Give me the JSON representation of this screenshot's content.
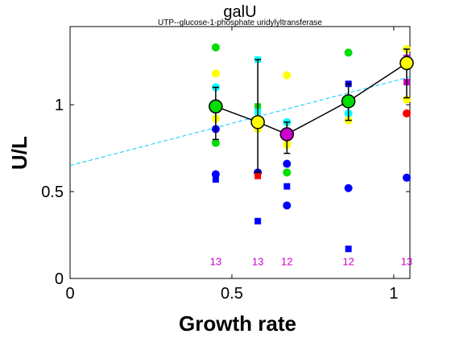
{
  "chart_data": {
    "type": "scatter",
    "title": "galU",
    "subtitle": "UTP--glucose-1-phosphate uridylyltransferase",
    "xlabel": "Growth rate",
    "ylabel": "U/L",
    "xlim": [
      0,
      1.05
    ],
    "ylim": [
      0,
      1.45
    ],
    "xticks": [
      {
        "value": 0,
        "label": "0"
      },
      {
        "value": 0.5,
        "label": "0.5"
      },
      {
        "value": 1,
        "label": "1"
      }
    ],
    "yticks": [
      {
        "value": 0,
        "label": "0"
      },
      {
        "value": 0.5,
        "label": "0.5"
      },
      {
        "value": 1,
        "label": "1"
      }
    ],
    "grid": false,
    "colors": {
      "yellow": "#ffff00",
      "green": "#00dd00",
      "cyan": "#00ffff",
      "blue": "#0000ff",
      "magenta": "#cc00cc",
      "red": "#ff0000",
      "fit": "#00ccff",
      "mean": "#000000"
    },
    "points": [
      {
        "x": 0.45,
        "y": 1.33,
        "color": "green",
        "marker": "circle"
      },
      {
        "x": 0.45,
        "y": 1.18,
        "color": "yellow",
        "marker": "circle"
      },
      {
        "x": 0.45,
        "y": 1.1,
        "color": "cyan",
        "marker": "circle"
      },
      {
        "x": 0.45,
        "y": 0.99,
        "color": "green",
        "marker": "circle"
      },
      {
        "x": 0.45,
        "y": 0.92,
        "color": "yellow",
        "marker": "circle"
      },
      {
        "x": 0.45,
        "y": 0.86,
        "color": "blue",
        "marker": "circle"
      },
      {
        "x": 0.45,
        "y": 0.78,
        "color": "green",
        "marker": "circle"
      },
      {
        "x": 0.45,
        "y": 0.6,
        "color": "blue",
        "marker": "circle"
      },
      {
        "x": 0.45,
        "y": 0.57,
        "color": "blue",
        "marker": "square"
      },
      {
        "x": 0.58,
        "y": 1.26,
        "color": "cyan",
        "marker": "square"
      },
      {
        "x": 0.58,
        "y": 0.99,
        "color": "green",
        "marker": "square"
      },
      {
        "x": 0.58,
        "y": 0.96,
        "color": "cyan",
        "marker": "square"
      },
      {
        "x": 0.58,
        "y": 0.86,
        "color": "yellow",
        "marker": "circle"
      },
      {
        "x": 0.58,
        "y": 0.61,
        "color": "blue",
        "marker": "circle"
      },
      {
        "x": 0.58,
        "y": 0.59,
        "color": "red",
        "marker": "square"
      },
      {
        "x": 0.58,
        "y": 0.33,
        "color": "blue",
        "marker": "square"
      },
      {
        "x": 0.67,
        "y": 1.17,
        "color": "yellow",
        "marker": "circle"
      },
      {
        "x": 0.67,
        "y": 0.9,
        "color": "cyan",
        "marker": "circle"
      },
      {
        "x": 0.67,
        "y": 0.82,
        "color": "magenta",
        "marker": "square"
      },
      {
        "x": 0.67,
        "y": 0.77,
        "color": "yellow",
        "marker": "circle"
      },
      {
        "x": 0.67,
        "y": 0.66,
        "color": "blue",
        "marker": "circle"
      },
      {
        "x": 0.67,
        "y": 0.61,
        "color": "green",
        "marker": "circle"
      },
      {
        "x": 0.67,
        "y": 0.53,
        "color": "blue",
        "marker": "square"
      },
      {
        "x": 0.67,
        "y": 0.42,
        "color": "blue",
        "marker": "circle"
      },
      {
        "x": 0.86,
        "y": 1.3,
        "color": "green",
        "marker": "circle"
      },
      {
        "x": 0.86,
        "y": 1.12,
        "color": "blue",
        "marker": "square"
      },
      {
        "x": 0.86,
        "y": 1.02,
        "color": "green",
        "marker": "circle"
      },
      {
        "x": 0.86,
        "y": 0.95,
        "color": "cyan",
        "marker": "circle"
      },
      {
        "x": 0.86,
        "y": 0.91,
        "color": "yellow",
        "marker": "circle"
      },
      {
        "x": 0.86,
        "y": 0.52,
        "color": "blue",
        "marker": "circle"
      },
      {
        "x": 0.86,
        "y": 0.17,
        "color": "blue",
        "marker": "square"
      },
      {
        "x": 1.04,
        "y": 1.32,
        "color": "yellow",
        "marker": "circle"
      },
      {
        "x": 1.04,
        "y": 1.27,
        "color": "magenta",
        "marker": "square"
      },
      {
        "x": 1.04,
        "y": 1.22,
        "color": "green",
        "marker": "circle"
      },
      {
        "x": 1.04,
        "y": 1.13,
        "color": "magenta",
        "marker": "square"
      },
      {
        "x": 1.04,
        "y": 1.03,
        "color": "yellow",
        "marker": "circle"
      },
      {
        "x": 1.04,
        "y": 0.95,
        "color": "red",
        "marker": "circle"
      },
      {
        "x": 1.04,
        "y": 0.58,
        "color": "blue",
        "marker": "circle"
      }
    ],
    "means": [
      {
        "x": 0.45,
        "y": 0.99,
        "ylow": 0.8,
        "yhigh": 1.1,
        "fill": "green"
      },
      {
        "x": 0.58,
        "y": 0.9,
        "ylow": 0.61,
        "yhigh": 1.26,
        "fill": "yellow"
      },
      {
        "x": 0.67,
        "y": 0.83,
        "ylow": 0.72,
        "yhigh": 0.9,
        "fill": "magenta"
      },
      {
        "x": 0.86,
        "y": 1.02,
        "ylow": 0.91,
        "yhigh": 1.12,
        "fill": "green"
      },
      {
        "x": 1.04,
        "y": 1.24,
        "ylow": 1.04,
        "yhigh": 1.32,
        "fill": "yellow"
      }
    ],
    "fit_line": {
      "x": [
        0,
        1.05
      ],
      "y": [
        0.65,
        1.16
      ]
    },
    "counts": [
      {
        "x": 0.45,
        "label": "13"
      },
      {
        "x": 0.58,
        "label": "13"
      },
      {
        "x": 0.67,
        "label": "12"
      },
      {
        "x": 0.86,
        "label": "12"
      },
      {
        "x": 1.04,
        "label": "13"
      }
    ],
    "count_y": 0.1
  }
}
